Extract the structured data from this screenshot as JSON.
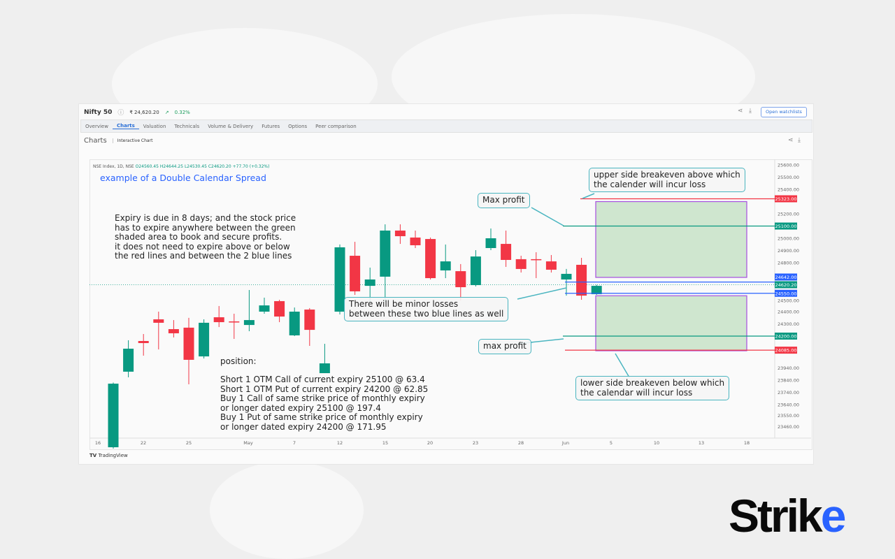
{
  "header": {
    "name": "Nifty 50",
    "price": "₹ 24,620.20",
    "change": "0.32%",
    "watchlist_button": "Open watchlists"
  },
  "tabs": [
    "Overview",
    "Charts",
    "Valuation",
    "Technicals",
    "Volume & Delivery",
    "Futures",
    "Options",
    "Peer comparison"
  ],
  "active_tab": "Charts",
  "subheader": {
    "title": "Charts",
    "interactive": "Interactive Chart"
  },
  "ohlc": {
    "symbol": "NSE Index, 1D, NSE",
    "open": "O24560.45",
    "high": "H24644.25",
    "low": "L24530.45",
    "close": "C24620.20",
    "change": "+77.70 (+0.32%)"
  },
  "chart_title": "example of a Double Calendar Spread",
  "notes": {
    "expiry": "Expiry is due in 8 days; and the stock price\nhas to expire anywhere between the green\nshaded area to book and secure profits.\nit does not need to expire above or below\nthe red lines and between the 2 blue lines",
    "position_title": "position:",
    "position": "Short 1 OTM Call of current expiry 25100 @ 63.4\nShort 1 OTM Put of current expiry 24200 @ 62.85\nBuy 1 Call of same strike price of monthly expiry\nor longer dated expiry 25100 @ 197.4\nBuy 1 Put of same strike price of monthly expiry\nor longer dated expiry 24200 @ 171.95",
    "upper_breakeven": "upper side breakeven above which\nthe calender will incur loss",
    "max_profit_upper": "Max profit",
    "minor_losses": "There will be minor losses\nbetween these two blue lines as well",
    "max_profit_lower": "max profit",
    "lower_breakeven": "lower side breakeven below which\nthe calendar will incur loss"
  },
  "branding": {
    "tradingview": "TradingView",
    "logo": "Strike"
  },
  "colors": {
    "up": "#089981",
    "down": "#f23645",
    "blue": "#2962ff",
    "callout": "#4ab5c0",
    "profit_zone": "#cfe6cf",
    "zone_border": "#a64ee0"
  },
  "chart_data": {
    "type": "candlestick",
    "y_ticks": [
      "25600.00",
      "25500.00",
      "25400.00",
      "25200.00",
      "25000.00",
      "24900.00",
      "24800.00",
      "24500.00",
      "24400.00",
      "24300.00",
      "23940.00",
      "23840.00",
      "23740.00",
      "23640.00",
      "23550.00",
      "23460.00"
    ],
    "x_ticks": [
      "16",
      "22",
      "25",
      "May",
      "7",
      "12",
      "15",
      "20",
      "23",
      "28",
      "Jun",
      "5",
      "10",
      "13",
      "18"
    ],
    "candles": [
      [
        23291,
        23820,
        23280,
        23811
      ],
      [
        23909,
        24166,
        23863,
        24097
      ],
      [
        24160,
        24217,
        24040,
        24143
      ],
      [
        24337,
        24400,
        24091,
        24309
      ],
      [
        24257,
        24331,
        24189,
        24223
      ],
      [
        24269,
        24349,
        23806,
        24006
      ],
      [
        24034,
        24337,
        24017,
        24309
      ],
      [
        24354,
        24446,
        24274,
        24314
      ],
      [
        24320,
        24383,
        24177,
        24314
      ],
      [
        24291,
        24577,
        24240,
        24331
      ],
      [
        24400,
        24514,
        24383,
        24451
      ],
      [
        24486,
        24497,
        24314,
        24360
      ],
      [
        24206,
        24434,
        24200,
        24400
      ],
      [
        24417,
        24429,
        24120,
        24251
      ],
      [
        23897,
        24137,
        23897,
        23977
      ],
      [
        24400,
        24949,
        24377,
        24926
      ],
      [
        24857,
        24971,
        24537,
        24566
      ],
      [
        24611,
        24760,
        24480,
        24663
      ],
      [
        24686,
        25114,
        24480,
        25063
      ],
      [
        25063,
        25114,
        24954,
        25017
      ],
      [
        25006,
        25063,
        24920,
        24943
      ],
      [
        24994,
        25006,
        24663,
        24674
      ],
      [
        24737,
        24949,
        24674,
        24811
      ],
      [
        24731,
        24789,
        24491,
        24600
      ],
      [
        24617,
        24903,
        24606,
        24851
      ],
      [
        24920,
        25080,
        24903,
        25000
      ],
      [
        24954,
        25063,
        24766,
        24823
      ],
      [
        24829,
        24857,
        24720,
        24749
      ],
      [
        24829,
        24886,
        24674,
        24823
      ],
      [
        24811,
        24863,
        24720,
        24743
      ],
      [
        24663,
        24749,
        24531,
        24709
      ],
      [
        24783,
        24840,
        24497,
        24531
      ],
      [
        24543,
        24620,
        24537,
        24611
      ]
    ],
    "levels": [
      {
        "price": 25323,
        "label": "25323.00",
        "color": "#f23645"
      },
      {
        "price": 25100,
        "label": "25100.00",
        "color": "#089981"
      },
      {
        "price": 24642,
        "label": "24642.00",
        "color": "#2962ff"
      },
      {
        "price": 24620.2,
        "label": "24620.20",
        "color": "#089981"
      },
      {
        "price": 24550,
        "label": "24550.00",
        "color": "#2962ff"
      },
      {
        "price": 24200,
        "label": "24200.00",
        "color": "#089981"
      },
      {
        "price": 24085,
        "label": "24085.00",
        "color": "#f23645"
      }
    ],
    "profit_zones": [
      [
        25300,
        24680
      ],
      [
        24530,
        24080
      ]
    ]
  }
}
